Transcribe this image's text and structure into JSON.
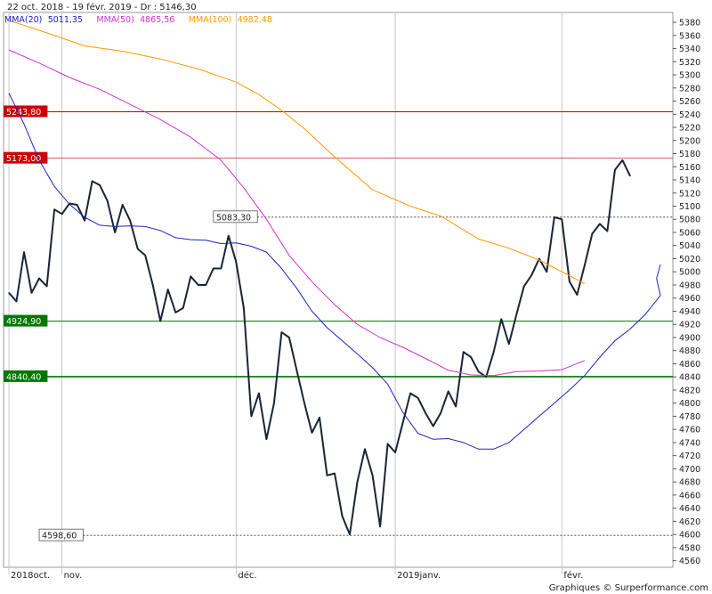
{
  "chart_data": {
    "type": "line",
    "title": "22 oct. 2018 - 19 févr. 2019 - Dr : 5146,30",
    "footer": "Graphiques © Surperformance.com",
    "ylim": [
      4550,
      5395
    ],
    "y_ticks": [
      4560,
      4580,
      4600,
      4620,
      4640,
      4660,
      4680,
      4700,
      4720,
      4740,
      4760,
      4780,
      4800,
      4820,
      4840,
      4860,
      4880,
      4900,
      4920,
      4940,
      4960,
      4980,
      5000,
      5020,
      5040,
      5060,
      5080,
      5100,
      5120,
      5140,
      5160,
      5180,
      5200,
      5220,
      5240,
      5260,
      5280,
      5300,
      5320,
      5340,
      5360,
      5380
    ],
    "x_range": [
      0,
      86
    ],
    "x_labels": [
      {
        "label": "2018oct.",
        "x": 0
      },
      {
        "label": "nov.",
        "x": 7
      },
      {
        "label": "déc.",
        "x": 30
      },
      {
        "label": "2019janv.",
        "x": 51
      },
      {
        "label": "févr.",
        "x": 73
      }
    ],
    "legend": [
      {
        "name": "MMA(20)",
        "value": "5011,35",
        "color": "#2020c0"
      },
      {
        "name": "MMA(50)",
        "value": "4865,56",
        "color": "#cc33cc"
      },
      {
        "name": "MMA(100)",
        "value": "4982,48",
        "color": "#ff9900"
      }
    ],
    "hlines": [
      {
        "label": "5243,80",
        "value": 5243.8,
        "color": "#cc0000",
        "width": 1,
        "style": "solid"
      },
      {
        "label": "5173,00",
        "value": 5173.0,
        "color": "#cc0000",
        "width": 0.6,
        "style": "solid"
      },
      {
        "label": "4924,90",
        "value": 4924.9,
        "color": "#007700",
        "width": 1,
        "style": "solid"
      },
      {
        "label": "4840,40",
        "value": 4840.4,
        "color": "#007700",
        "width": 1.6,
        "style": "solid"
      }
    ],
    "marker_lines": [
      {
        "label": "5083,30",
        "value": 5083.3,
        "x_start": 27
      },
      {
        "label": "4598,60",
        "value": 4598.6,
        "x_start": 4
      }
    ],
    "series": [
      {
        "name": "Cours",
        "color": "#1a2433",
        "values": [
          4968,
          4955,
          5030,
          4968,
          4990,
          4978,
          5095,
          5088,
          5104,
          5102,
          5078,
          5138,
          5132,
          5108,
          5060,
          5102,
          5078,
          5035,
          5025,
          4980,
          4925,
          4973,
          4938,
          4945,
          4993,
          4980,
          4980,
          5005,
          5005,
          5055,
          5015,
          4945,
          4780,
          4815,
          4745,
          4800,
          4908,
          4900,
          4850,
          4800,
          4755,
          4778,
          4690,
          4693,
          4628,
          4600,
          4680,
          4730,
          4690,
          4612,
          4738,
          4725,
          4770,
          4815,
          4808,
          4785,
          4765,
          4785,
          4818,
          4795,
          4878,
          4870,
          4848,
          4840,
          4878,
          4928,
          4890,
          4935,
          4978,
          4995,
          5020,
          5000,
          5083,
          5080,
          4985,
          4965,
          5010,
          5058,
          5073,
          5062,
          5155,
          5170,
          5146
        ],
        "ma": false
      },
      {
        "name": "MMA(20)",
        "color": "#2020c0",
        "ma": true,
        "x_start": 0,
        "values": [
          5272,
          5225,
          5170,
          5130,
          5103,
          5083,
          5071,
          5069,
          5070,
          5069,
          5063,
          5052,
          5049,
          5048,
          5043,
          5044,
          5039,
          5030,
          5005,
          4975,
          4940,
          4915,
          4895,
          4875,
          4854,
          4829,
          4786,
          4754,
          4745,
          4746,
          4740,
          4730,
          4730,
          4740,
          4760,
          4780,
          4800,
          4820,
          4842,
          4870,
          4895,
          4913,
          4935,
          4964,
          4990,
          5011
        ],
        "x_values": [
          0,
          2,
          4,
          6,
          8,
          10,
          12,
          14,
          16,
          18,
          20,
          22,
          24,
          26,
          28,
          30,
          32,
          34,
          36,
          38,
          40,
          42,
          44,
          46,
          48,
          50,
          52,
          54,
          56,
          58,
          60,
          62,
          64,
          66,
          68,
          70,
          72,
          74,
          76,
          78,
          80,
          82,
          84,
          86,
          85.5,
          86
        ]
      },
      {
        "name": "MMA(50)",
        "color": "#cc33cc",
        "ma": true,
        "values": [
          5338,
          5318,
          5296,
          5278,
          5255,
          5232,
          5205,
          5170,
          5128,
          5080,
          5025,
          4985,
          4950,
          4920,
          4900,
          4885,
          4868,
          4850,
          4843,
          4842,
          4848,
          4849,
          4851,
          4865
        ],
        "x_values": [
          0,
          4,
          8,
          12,
          16,
          20,
          24,
          28,
          31,
          34,
          37,
          40,
          43,
          46,
          49,
          52,
          55,
          58,
          61,
          64,
          67,
          70,
          73,
          76
        ]
      },
      {
        "name": "MMA(100)",
        "color": "#ff9900",
        "ma": true,
        "values": [
          5383,
          5364,
          5344,
          5336,
          5324,
          5309,
          5289,
          5270,
          5246,
          5218,
          5175,
          5125,
          5100,
          5085,
          5050,
          5036,
          5018,
          5000,
          4982
        ],
        "x_values": [
          0,
          5,
          10,
          15,
          20,
          25,
          30,
          33,
          36,
          39,
          43,
          48,
          53,
          57,
          62,
          66,
          70,
          73,
          76
        ]
      }
    ]
  }
}
